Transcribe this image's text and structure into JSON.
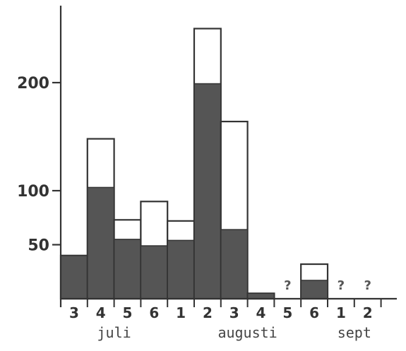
{
  "chart_data": {
    "type": "bar",
    "title": "",
    "xlabel": "",
    "ylabel": "",
    "y_ticks": [
      {
        "label": "50",
        "value": 50
      },
      {
        "label": "100",
        "value": 100
      },
      {
        "label": "200",
        "value": 200
      }
    ],
    "categories": [
      "3",
      "4",
      "5",
      "6",
      "1",
      "2",
      "3",
      "4",
      "5",
      "6",
      "1",
      "2"
    ],
    "months": [
      {
        "label": "juli",
        "span": [
          0,
          3
        ]
      },
      {
        "label": "augusti",
        "span": [
          4,
          9
        ]
      },
      {
        "label": "sept",
        "span": [
          10,
          11
        ]
      }
    ],
    "series": [
      {
        "values": [
          40,
          103,
          55,
          49,
          54,
          199,
          64,
          5,
          null,
          17,
          null,
          null
        ],
        "color": "#555555"
      },
      {
        "values": [
          40,
          148,
          73,
          90,
          72,
          250,
          164,
          5,
          null,
          32,
          null,
          null
        ],
        "color": "#ffffff"
      }
    ],
    "unknown_label": "?",
    "unknown_indices": [
      8,
      10,
      11
    ],
    "ylim": [
      0,
      260
    ]
  }
}
